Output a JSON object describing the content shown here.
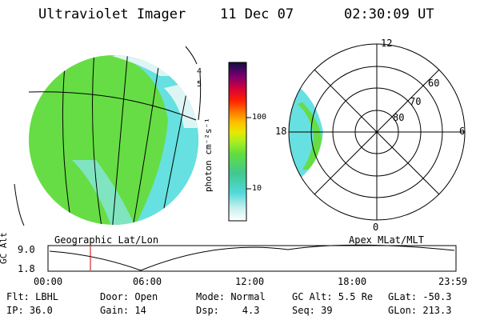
{
  "header": {
    "instrument": "Ultraviolet Imager",
    "date": "11 Dec 07",
    "time": "02:30:09 UT"
  },
  "colorbar": {
    "label": "photon cm⁻²s⁻¹",
    "ticks": [
      "100",
      "10"
    ]
  },
  "polar_plot": {
    "mlt_labels": [
      "12",
      "18",
      "6",
      "0"
    ],
    "lat_labels": [
      "60",
      "70",
      "80"
    ],
    "caption": "Apex MLat/MLT"
  },
  "geo_plot": {
    "caption": "Geographic Lat/Lon",
    "limb_labels": [
      "4",
      "5"
    ]
  },
  "timeline": {
    "y_label": "GC Alt",
    "y_ticks": [
      "9.0",
      "1.8"
    ],
    "x_ticks": [
      "00:00",
      "06:00",
      "12:00",
      "18:00",
      "23:59"
    ],
    "marker_time": "02:30"
  },
  "info": {
    "row1": {
      "filter": "Flt: LBHL",
      "door": "Door: Open",
      "mode": "Mode: Normal",
      "gc_alt": "GC Alt: 5.5 Re",
      "glat": "GLat: -50.3"
    },
    "row2": {
      "ip": "IP: 36.0",
      "gain": "Gain: 14",
      "dsp": "Dsp:    4.3",
      "seq": "Seq: 39",
      "glon": "GLon: 213.3"
    }
  },
  "colors": {
    "green": "#66dd44",
    "cyan": "#66e0e0",
    "marker": "#cc0000"
  }
}
